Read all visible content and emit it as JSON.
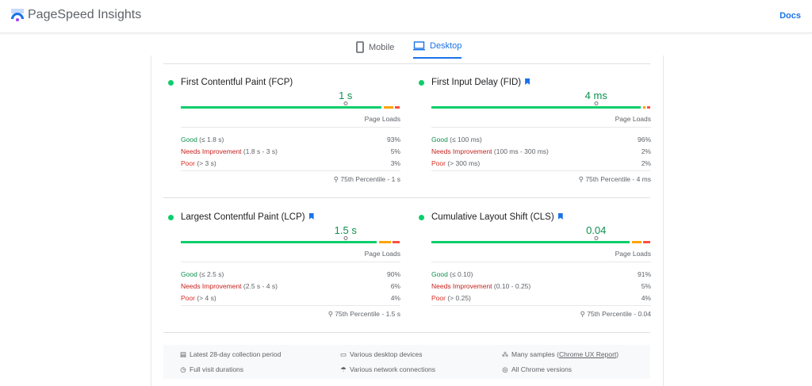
{
  "header": {
    "brand": "PageSpeed Insights",
    "docs": "Docs"
  },
  "tabs": [
    {
      "label": "Mobile",
      "icon": "mobile-icon",
      "active": false
    },
    {
      "label": "Desktop",
      "icon": "desktop-icon",
      "active": true
    }
  ],
  "colors": {
    "good": "#0cce6b",
    "average": "#ffa400",
    "poor": "#ff4e42",
    "accent": "#1a73e8"
  },
  "metrics": [
    {
      "title": "First Contentful Paint (FCP)",
      "bookmark": false,
      "value": "1 s",
      "page_loads": "Page Loads",
      "rows": [
        {
          "label": "Good",
          "range": "(≤ 1.8 s)",
          "pct": "93%"
        },
        {
          "label": "Needs Improvement",
          "range": "(1.8 s - 3 s)",
          "pct": "5%"
        },
        {
          "label": "Poor",
          "range": "(> 3 s)",
          "pct": "3%"
        }
      ],
      "percentile": "75th Percentile - 1 s",
      "dist": [
        93,
        5,
        3
      ]
    },
    {
      "title": "First Input Delay (FID)",
      "bookmark": true,
      "value": "4 ms",
      "page_loads": "Page Loads",
      "rows": [
        {
          "label": "Good",
          "range": "(≤ 100 ms)",
          "pct": "96%"
        },
        {
          "label": "Needs Improvement",
          "range": "(100 ms - 300 ms)",
          "pct": "2%"
        },
        {
          "label": "Poor",
          "range": "(> 300 ms)",
          "pct": "2%"
        }
      ],
      "percentile": "75th Percentile - 4 ms",
      "dist": [
        96,
        2,
        2
      ]
    },
    {
      "title": "Largest Contentful Paint (LCP)",
      "bookmark": true,
      "value": "1.5 s",
      "page_loads": "Page Loads",
      "rows": [
        {
          "label": "Good",
          "range": "(≤ 2.5 s)",
          "pct": "90%"
        },
        {
          "label": "Needs Improvement",
          "range": "(2.5 s - 4 s)",
          "pct": "6%"
        },
        {
          "label": "Poor",
          "range": "(> 4 s)",
          "pct": "4%"
        }
      ],
      "percentile": "75th Percentile - 1.5 s",
      "dist": [
        90,
        6,
        4
      ]
    },
    {
      "title": "Cumulative Layout Shift (CLS)",
      "bookmark": true,
      "value": "0.04",
      "page_loads": "Page Loads",
      "rows": [
        {
          "label": "Good",
          "range": "(≤ 0.10)",
          "pct": "91%"
        },
        {
          "label": "Needs Improvement",
          "range": "(0.10 - 0.25)",
          "pct": "5%"
        },
        {
          "label": "Poor",
          "range": "(> 0.25)",
          "pct": "4%"
        }
      ],
      "percentile": "75th Percentile - 0.04",
      "dist": [
        91,
        5,
        4
      ]
    }
  ],
  "footer": [
    {
      "icon": "calendar-icon",
      "text": "Latest 28-day collection period"
    },
    {
      "icon": "devices-icon",
      "text": "Various desktop devices"
    },
    {
      "icon": "samples-icon",
      "text": "Many samples (",
      "link": "Chrome UX Report",
      "after": ")"
    },
    {
      "icon": "timer-icon",
      "text": "Full visit durations"
    },
    {
      "icon": "wifi-icon",
      "text": "Various network connections"
    },
    {
      "icon": "chrome-icon",
      "text": "All Chrome versions"
    }
  ]
}
